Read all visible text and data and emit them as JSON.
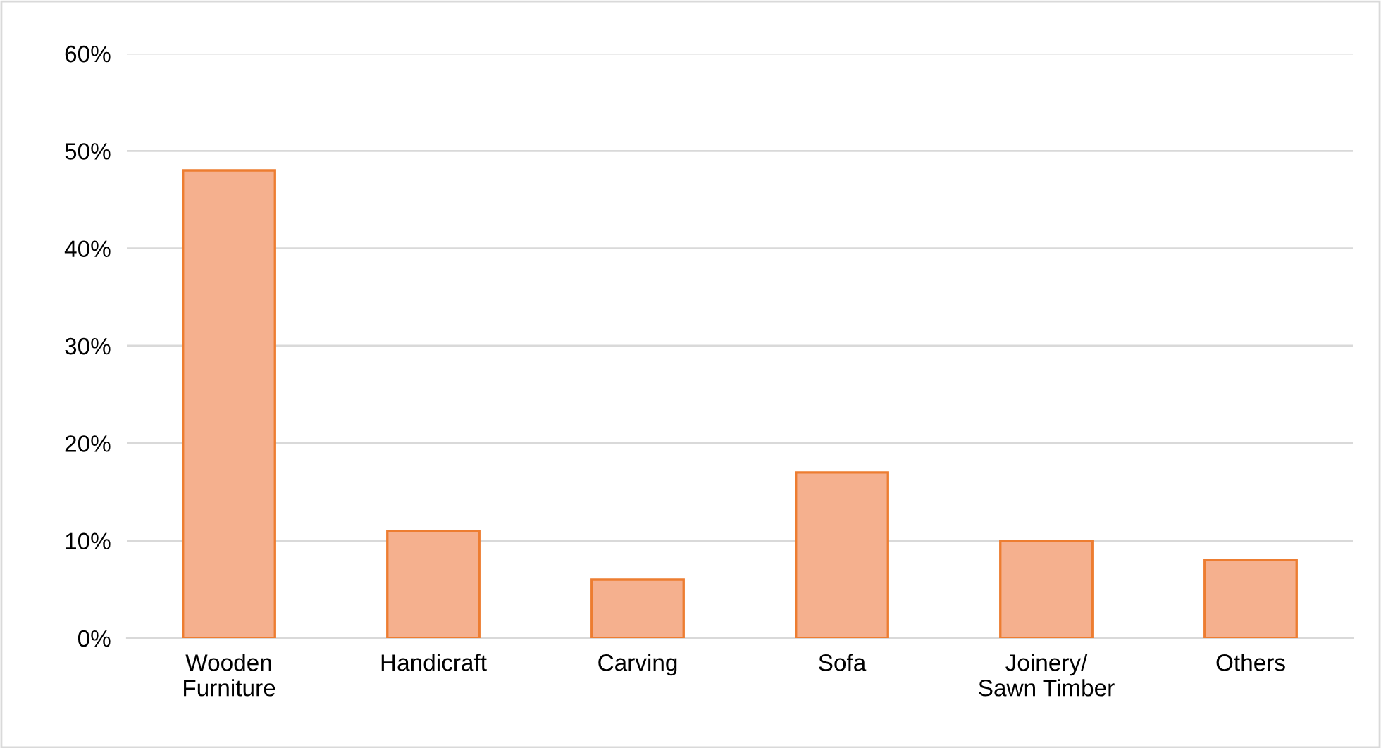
{
  "chart_data": {
    "type": "bar",
    "categories": [
      "Wooden\nFurniture",
      "Handicraft",
      "Carving",
      "Sofa",
      "Joinery/\nSawn Timber",
      "Others"
    ],
    "values": [
      48,
      11,
      6,
      17,
      10,
      8
    ],
    "color": "#f5b08e",
    "ylim": [
      0,
      60
    ],
    "yticks": [
      {
        "value": 0,
        "label": "0%"
      },
      {
        "value": 10,
        "label": "10%"
      },
      {
        "value": 20,
        "label": "20%"
      },
      {
        "value": 30,
        "label": "30%"
      },
      {
        "value": 40,
        "label": "40%"
      },
      {
        "value": 50,
        "label": "50%"
      },
      {
        "value": 60,
        "label": "60%"
      }
    ],
    "grid": "y"
  }
}
